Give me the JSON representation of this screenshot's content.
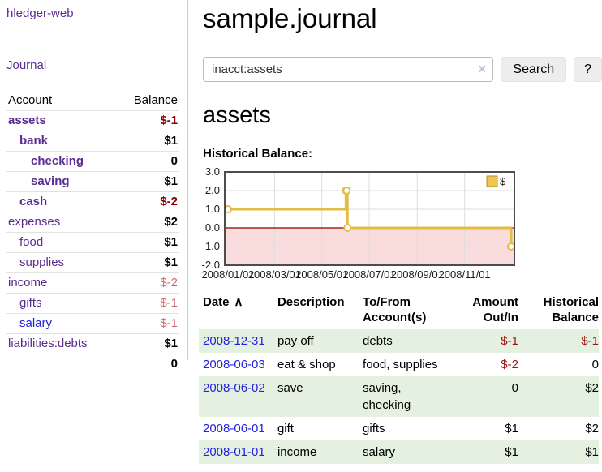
{
  "app": {
    "brand": "hledger-web",
    "nav_journal": "Journal"
  },
  "sidebar": {
    "header": {
      "account": "Account",
      "balance": "Balance"
    },
    "accounts": [
      {
        "name": "assets",
        "balance": "$-1",
        "indent": 0,
        "bold": true,
        "balance_class": "neg-strong",
        "link": "purple"
      },
      {
        "name": "bank",
        "balance": "$1",
        "indent": 1,
        "bold": true,
        "balance_class": "pos",
        "link": "purple"
      },
      {
        "name": "checking",
        "balance": "0",
        "indent": 2,
        "bold": true,
        "balance_class": "pos",
        "link": "purple"
      },
      {
        "name": "saving",
        "balance": "$1",
        "indent": 2,
        "bold": true,
        "balance_class": "pos",
        "link": "purple"
      },
      {
        "name": "cash",
        "balance": "$-2",
        "indent": 1,
        "bold": true,
        "balance_class": "neg-strong",
        "link": "purple"
      },
      {
        "name": "expenses",
        "balance": "$2",
        "indent": 0,
        "bold": false,
        "balance_class": "pos",
        "link": "purple"
      },
      {
        "name": "food",
        "balance": "$1",
        "indent": 1,
        "bold": false,
        "balance_class": "pos",
        "link": "purple"
      },
      {
        "name": "supplies",
        "balance": "$1",
        "indent": 1,
        "bold": false,
        "balance_class": "pos",
        "link": "purple"
      },
      {
        "name": "income",
        "balance": "$-2",
        "indent": 0,
        "bold": false,
        "balance_class": "neg-soft",
        "link": "purple"
      },
      {
        "name": "gifts",
        "balance": "$-1",
        "indent": 1,
        "bold": false,
        "balance_class": "neg-soft",
        "link": "purple"
      },
      {
        "name": "salary",
        "balance": "$-1",
        "indent": 1,
        "bold": false,
        "balance_class": "neg-soft",
        "link": "blue"
      },
      {
        "name": "liabilities:debts",
        "balance": "$1",
        "indent": 0,
        "bold": false,
        "balance_class": "pos",
        "link": "purple"
      }
    ],
    "total": "0"
  },
  "header": {
    "title": "sample.journal"
  },
  "search": {
    "value": "inacct:assets",
    "clear_icon": "×",
    "button_label": "Search",
    "help_label": "?"
  },
  "main": {
    "account_title": "assets",
    "chart_label": "Historical Balance:"
  },
  "chart_data": {
    "type": "line",
    "style": "step-after",
    "title": "Historical Balance:",
    "series": [
      {
        "name": "$",
        "points": [
          {
            "date": "2008-01-01",
            "value": 1
          },
          {
            "date": "2008-06-01",
            "value": 2
          },
          {
            "date": "2008-06-02",
            "value": 2
          },
          {
            "date": "2008-06-03",
            "value": 0
          },
          {
            "date": "2008-12-31",
            "value": -1
          }
        ]
      }
    ],
    "x_ticks": [
      "2008/01/01",
      "2008/03/01",
      "2008/05/01",
      "2008/07/01",
      "2008/09/01",
      "2008/11/01"
    ],
    "y_ticks": [
      3.0,
      2.0,
      1.0,
      0.0,
      -1.0,
      -2.0
    ],
    "ylim": [
      -2,
      3
    ],
    "legend": {
      "label": "$",
      "position": "top-right"
    },
    "grid": true,
    "colors": {
      "line": "#e3bc45",
      "marker_fill": "#ffffff",
      "legend_fill": "#ecc64d",
      "legend_border": "#b08d2a",
      "negative_region": "#fadcdc",
      "zero_line": "#8b0000",
      "grid": "#dddddd",
      "border": "#4d4d4d",
      "tick_text": "#1a1a1a"
    }
  },
  "register": {
    "columns": [
      {
        "label": "Date",
        "sort_icon": "∧"
      },
      {
        "label": "Description"
      },
      {
        "label": "To/From\nAccount(s)"
      },
      {
        "label": "Amount\nOut/In"
      },
      {
        "label": "Historical\nBalance"
      }
    ],
    "rows": [
      {
        "date": "2008-12-31",
        "description": "pay off",
        "accounts": "debts",
        "amount": "$-1",
        "balance": "$-1",
        "amount_neg": true,
        "balance_neg": true
      },
      {
        "date": "2008-06-03",
        "description": "eat & shop",
        "accounts": "food, supplies",
        "amount": "$-2",
        "balance": "0",
        "amount_neg": true,
        "balance_neg": false
      },
      {
        "date": "2008-06-02",
        "description": "save",
        "accounts": "saving, checking",
        "amount": "0",
        "balance": "$2",
        "amount_neg": false,
        "balance_neg": false
      },
      {
        "date": "2008-06-01",
        "description": "gift",
        "accounts": "gifts",
        "amount": "$1",
        "balance": "$2",
        "amount_neg": false,
        "balance_neg": false
      },
      {
        "date": "2008-01-01",
        "description": "income",
        "accounts": "salary",
        "amount": "$1",
        "balance": "$1",
        "amount_neg": false,
        "balance_neg": false
      }
    ]
  }
}
